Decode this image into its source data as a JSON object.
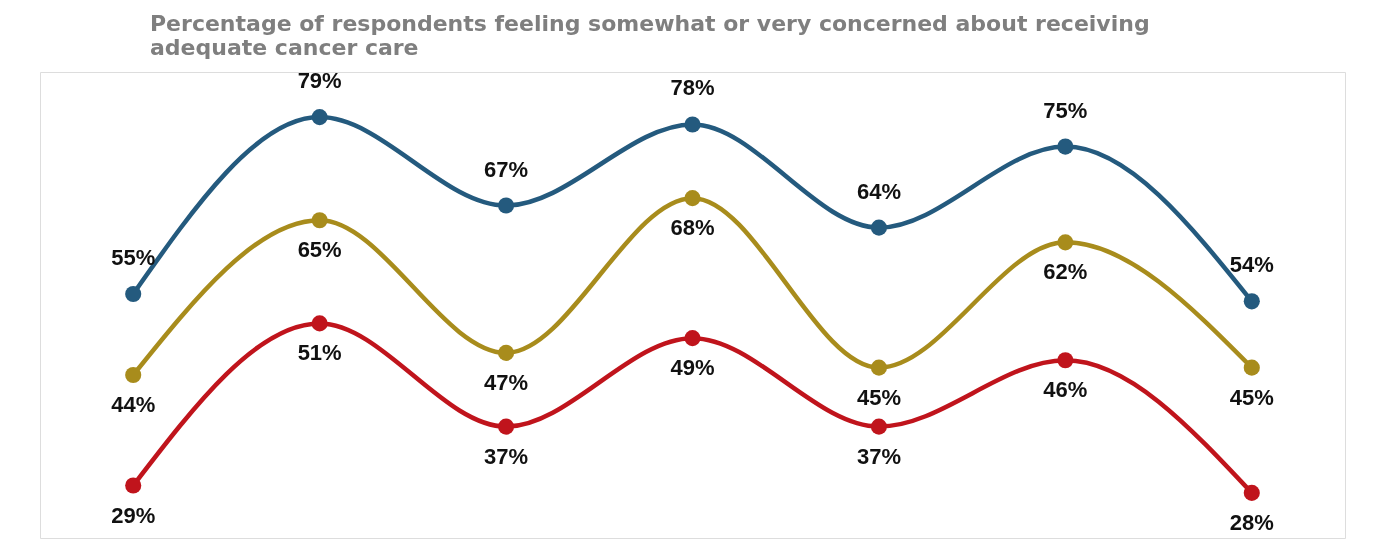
{
  "chart_data": {
    "type": "line",
    "title": "Percentage of respondents feeling somewhat or very concerned about receiving adequate cancer care",
    "categories": [
      null,
      null,
      null,
      null,
      null,
      null,
      null
    ],
    "series": [
      {
        "color": "#245a7e",
        "values": [
          55,
          79,
          67,
          78,
          64,
          75,
          54
        ],
        "value_labels": [
          "55%",
          "79%",
          "67%",
          "78%",
          "64%",
          "75%",
          "54%"
        ]
      },
      {
        "color": "#a88c1c",
        "values": [
          44,
          65,
          47,
          68,
          45,
          62,
          45
        ],
        "value_labels": [
          "44%",
          "65%",
          "47%",
          "68%",
          "45%",
          "62%",
          "45%"
        ]
      },
      {
        "color": "#c0141c",
        "values": [
          29,
          51,
          37,
          49,
          37,
          46,
          28
        ],
        "value_labels": [
          "29%",
          "51%",
          "37%",
          "49%",
          "37%",
          "46%",
          "28%"
        ]
      }
    ],
    "marker": "circle",
    "line_style": "solid",
    "grid": false,
    "tick_labels": false
  }
}
